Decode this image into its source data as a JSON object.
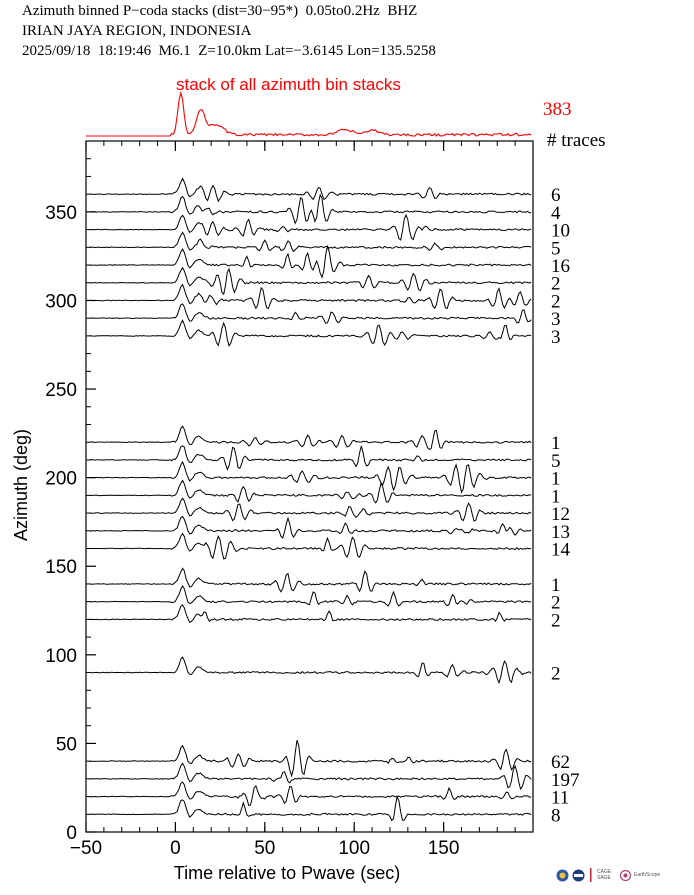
{
  "header": {
    "line1": "Azimuth binned P−coda stacks (dist=30−95*)  0.05to0.2Hz  BHZ",
    "line2": "IRIAN JAYA REGION, INDONESIA",
    "line3": "2025/09/18  18:19:46  M6.1  Z=10.0km Lat=−3.6145 Lon=135.5258"
  },
  "logos": {
    "cage_sage": "CAGE SAGE",
    "earthscope": "EarthScope"
  },
  "colors": {
    "stack": "#ff0000",
    "traces": "#000000",
    "axis": "#000000"
  },
  "chart_data": {
    "type": "line",
    "title": "stack of all azimuth bin stacks",
    "xlabel": "Time relative to Pwave (sec)",
    "ylabel": "Azimuth (deg)",
    "xlim": [
      -50,
      200
    ],
    "ylim": [
      0,
      390
    ],
    "xticks": [
      -50,
      0,
      50,
      100,
      150
    ],
    "yticks": [
      0,
      50,
      100,
      150,
      200,
      250,
      300,
      350
    ],
    "count_header": "# traces",
    "summary_stack": {
      "name": "stack of all azimuth bin stacks",
      "count": 383
    },
    "series": [
      {
        "azimuth": 360,
        "count": 6
      },
      {
        "azimuth": 350,
        "count": 4
      },
      {
        "azimuth": 340,
        "count": 10
      },
      {
        "azimuth": 330,
        "count": 5
      },
      {
        "azimuth": 320,
        "count": 16
      },
      {
        "azimuth": 310,
        "count": 2
      },
      {
        "azimuth": 300,
        "count": 2
      },
      {
        "azimuth": 290,
        "count": 3
      },
      {
        "azimuth": 280,
        "count": 3
      },
      {
        "azimuth": 220,
        "count": 1
      },
      {
        "azimuth": 210,
        "count": 5
      },
      {
        "azimuth": 200,
        "count": 1
      },
      {
        "azimuth": 190,
        "count": 1
      },
      {
        "azimuth": 180,
        "count": 12
      },
      {
        "azimuth": 170,
        "count": 13
      },
      {
        "azimuth": 160,
        "count": 14
      },
      {
        "azimuth": 140,
        "count": 1
      },
      {
        "azimuth": 130,
        "count": 2
      },
      {
        "azimuth": 120,
        "count": 2
      },
      {
        "azimuth": 90,
        "count": 2
      },
      {
        "azimuth": 40,
        "count": 62
      },
      {
        "azimuth": 30,
        "count": 197
      },
      {
        "azimuth": 20,
        "count": 11
      },
      {
        "azimuth": 10,
        "count": 8
      }
    ]
  }
}
